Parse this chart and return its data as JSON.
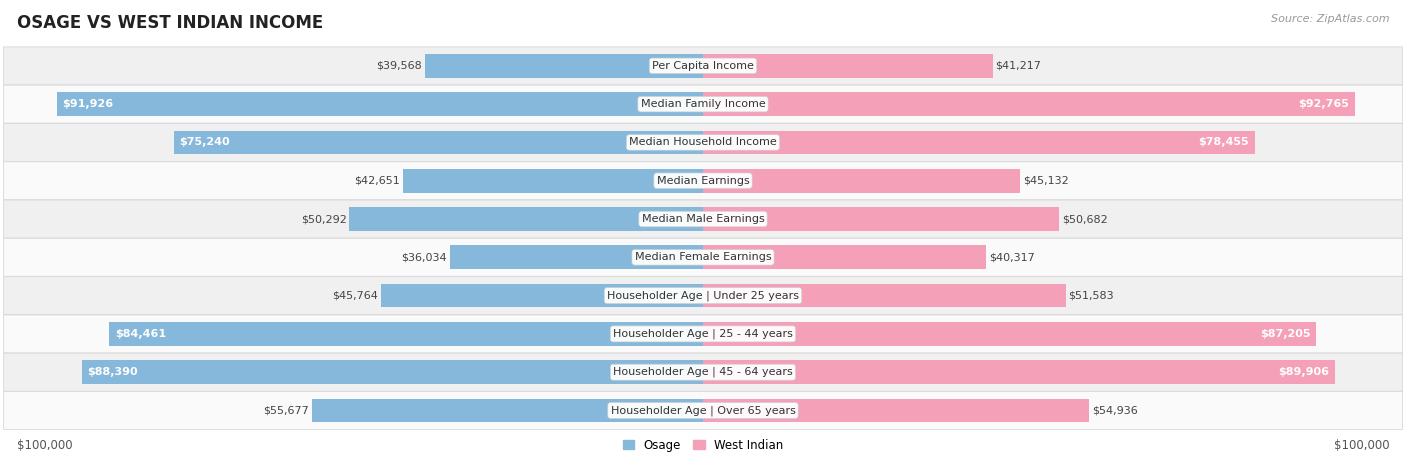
{
  "title": "OSAGE VS WEST INDIAN INCOME",
  "source": "Source: ZipAtlas.com",
  "categories": [
    "Per Capita Income",
    "Median Family Income",
    "Median Household Income",
    "Median Earnings",
    "Median Male Earnings",
    "Median Female Earnings",
    "Householder Age | Under 25 years",
    "Householder Age | 25 - 44 years",
    "Householder Age | 45 - 64 years",
    "Householder Age | Over 65 years"
  ],
  "osage_values": [
    39568,
    91926,
    75240,
    42651,
    50292,
    36034,
    45764,
    84461,
    88390,
    55677
  ],
  "west_indian_values": [
    41217,
    92765,
    78455,
    45132,
    50682,
    40317,
    51583,
    87205,
    89906,
    54936
  ],
  "osage_labels": [
    "$39,568",
    "$91,926",
    "$75,240",
    "$42,651",
    "$50,292",
    "$36,034",
    "$45,764",
    "$84,461",
    "$88,390",
    "$55,677"
  ],
  "west_indian_labels": [
    "$41,217",
    "$92,765",
    "$78,455",
    "$45,132",
    "$50,682",
    "$40,317",
    "$51,583",
    "$87,205",
    "$89,906",
    "$54,936"
  ],
  "osage_color": "#85b8da",
  "west_indian_color": "#f4a0b8",
  "max_value": 100000,
  "bar_height": 0.62,
  "background_color": "#ffffff",
  "row_bg_odd": "#f0f0f0",
  "row_bg_even": "#fafafa",
  "title_fontsize": 12,
  "label_fontsize": 8,
  "category_fontsize": 8,
  "source_fontsize": 8,
  "xlabel_left": "$100,000",
  "xlabel_right": "$100,000",
  "osage_threshold": 60000,
  "wi_threshold": 60000
}
